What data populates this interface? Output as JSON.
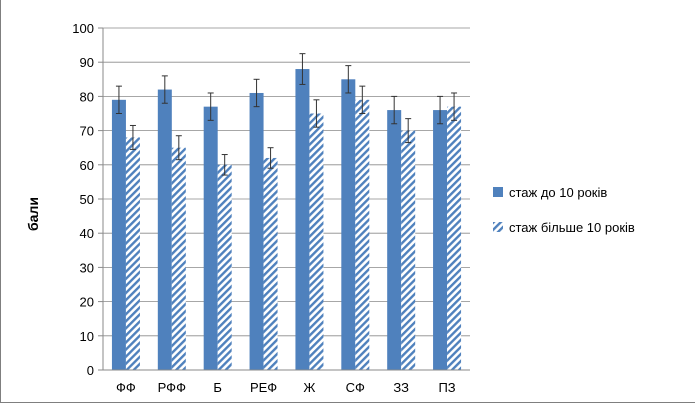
{
  "chart_data": {
    "type": "bar",
    "ylabel": "бали",
    "ylim": [
      0,
      100
    ],
    "yticks": [
      0,
      10,
      20,
      30,
      40,
      50,
      60,
      70,
      80,
      90,
      100
    ],
    "categories": [
      "ФФ",
      "РФФ",
      "Б",
      "РЕФ",
      "Ж",
      "СФ",
      "ЗЗ",
      "ПЗ"
    ],
    "series": [
      {
        "name": "стаж до 10 років",
        "values": [
          79,
          82,
          77,
          81,
          88,
          85,
          76,
          76
        ],
        "errors": [
          4,
          4,
          4,
          4,
          4.5,
          4,
          4,
          4
        ],
        "color": "#4f81bd",
        "pattern": "solid"
      },
      {
        "name": "стаж більше 10 років",
        "values": [
          68,
          65,
          60,
          62,
          75,
          79,
          70,
          77
        ],
        "errors": [
          3.5,
          3.5,
          3,
          3,
          4,
          4,
          3.5,
          4
        ],
        "color": "#4f81bd",
        "pattern": "hatched"
      }
    ],
    "grid": true,
    "legend_position": "right"
  }
}
